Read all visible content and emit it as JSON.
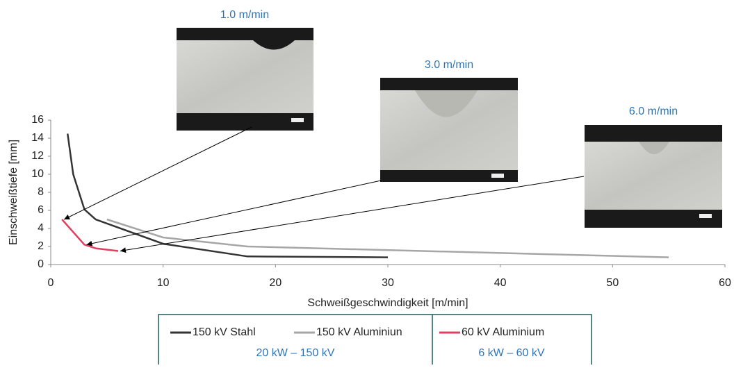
{
  "chart_data": {
    "type": "line",
    "xlabel": "Schweißgeschwindigkeit [m/min]",
    "ylabel": "Einschweißtiefe [mm]",
    "xlim": [
      0,
      60
    ],
    "xticks": [
      0,
      10,
      20,
      30,
      40,
      50,
      60
    ],
    "ylim": [
      0,
      16
    ],
    "yticks": [
      0,
      2,
      4,
      6,
      8,
      10,
      12,
      14,
      16
    ],
    "grid": false,
    "series": [
      {
        "name": "150 kV Stahl",
        "color": "#333333",
        "x": [
          1.5,
          2,
          3,
          4,
          10,
          17.5,
          30
        ],
        "values": [
          14.5,
          10,
          6.1,
          5,
          2.3,
          0.9,
          0.8
        ]
      },
      {
        "name": "150 kV Aluminiun",
        "color": "#a6a6a6",
        "x": [
          5,
          10,
          17.5,
          55
        ],
        "values": [
          5,
          3,
          2,
          0.8
        ]
      },
      {
        "name": "60 kV Aluminium",
        "color": "#e0405e",
        "x": [
          1,
          3,
          4,
          6
        ],
        "values": [
          5,
          2.2,
          1.8,
          1.5
        ]
      }
    ],
    "annotations": [
      "1.0 m/min",
      "3.0 m/min",
      "6.0 m/min"
    ],
    "legend_groups": [
      "20 kW – 150 kV",
      "6 kW – 60 kV"
    ]
  }
}
